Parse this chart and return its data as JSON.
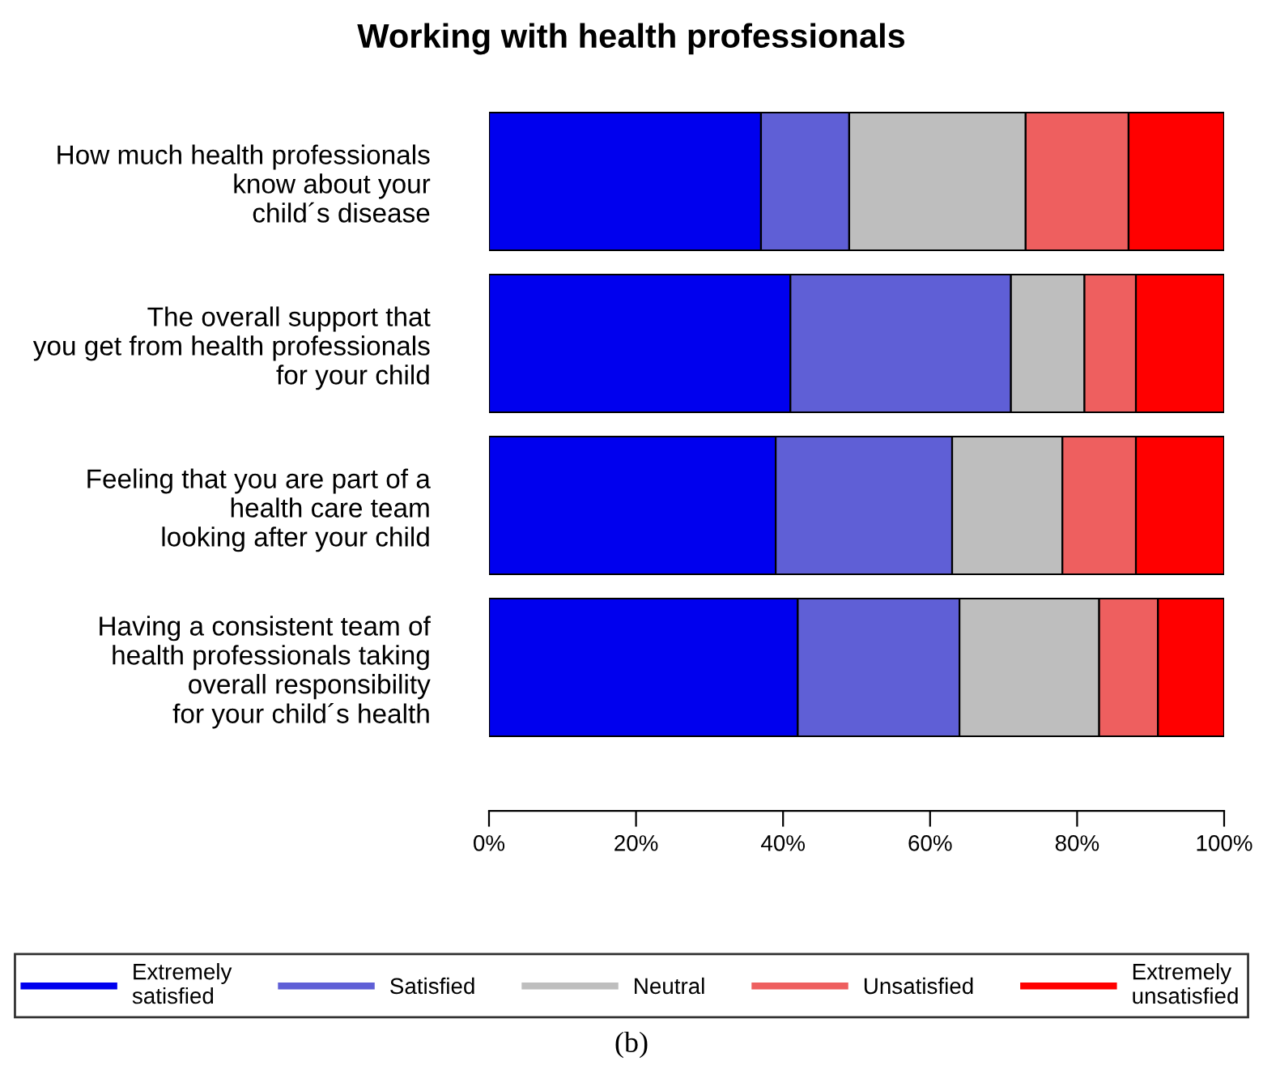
{
  "chart_data": {
    "type": "bar",
    "orientation": "horizontal",
    "stacked": true,
    "title": "Working with health professionals",
    "categories": [
      "How much health professionals\nknow about your\nchild´s disease",
      "The overall support that\nyou get from health professionals\nfor your child",
      "Feeling that you are part of a\nhealth care team\nlooking after your child",
      "Having a consistent team of\nhealth professionals taking\noverall responsibility\nfor your child´s health"
    ],
    "series": [
      {
        "name": "Extremely\nsatisfied",
        "color": "#0000ee",
        "values": [
          37,
          41,
          39,
          42
        ]
      },
      {
        "name": "Satisfied",
        "color": "#5f5fd6",
        "values": [
          12,
          30,
          24,
          22
        ]
      },
      {
        "name": "Neutral",
        "color": "#bebebe",
        "values": [
          24,
          10,
          15,
          19
        ]
      },
      {
        "name": "Unsatisfied",
        "color": "#ee5f5f",
        "values": [
          14,
          7,
          10,
          8
        ]
      },
      {
        "name": "Extremely\nunsatisfied",
        "color": "#ff0000",
        "values": [
          13,
          12,
          12,
          9
        ]
      }
    ],
    "xlim": [
      0,
      100
    ],
    "xticks": [
      {
        "value": 0,
        "label": "0%"
      },
      {
        "value": 20,
        "label": "20%"
      },
      {
        "value": 40,
        "label": "40%"
      },
      {
        "value": 60,
        "label": "60%"
      },
      {
        "value": 80,
        "label": "80%"
      },
      {
        "value": 100,
        "label": "100%"
      }
    ],
    "legend": "bottom",
    "grid": false,
    "annotations": [
      "(b)"
    ]
  }
}
